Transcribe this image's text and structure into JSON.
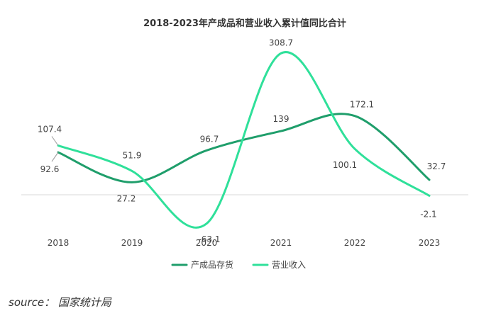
{
  "chart_data": {
    "type": "line",
    "title": "2018-2023年产成品和营业收入累计值同比合计",
    "categories": [
      "2018",
      "2019",
      "2020",
      "2021",
      "2022",
      "2023"
    ],
    "series": [
      {
        "name": "产成品存货",
        "values": [
          92.6,
          27.2,
          96.7,
          139,
          172.1,
          32.7
        ],
        "color": "#1f9e6b"
      },
      {
        "name": "营业收入",
        "values": [
          107.4,
          51.9,
          -63.1,
          308.7,
          100.1,
          -2.1
        ],
        "color": "#2fe09a"
      }
    ],
    "labels": {
      "s0": [
        "92.6",
        "27.2",
        "96.7",
        "139",
        "172.1",
        "32.7"
      ],
      "s1": [
        "107.4",
        "51.9",
        "-63.1",
        "308.7",
        "100.1",
        "-2.1"
      ]
    },
    "ylim": [
      -85,
      340
    ],
    "xlabel": "",
    "ylabel": "",
    "legend": "bottom",
    "grid": false
  },
  "source": "source： 国家统计局"
}
